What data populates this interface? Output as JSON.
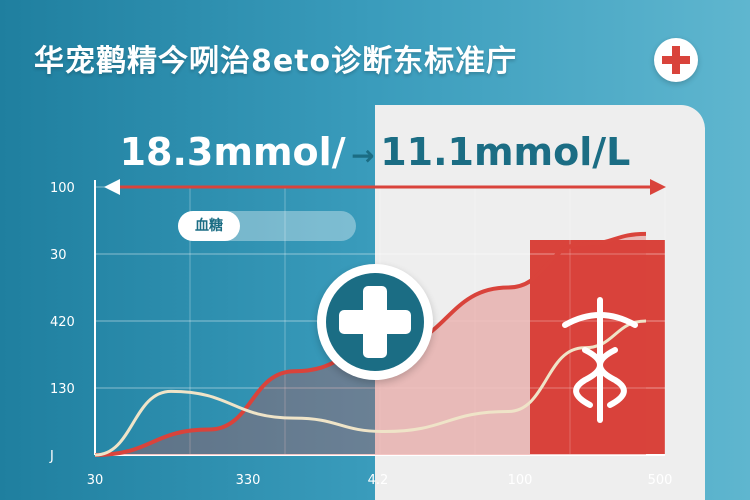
{
  "title": "华宠鹳精今咧治8eto诊断东标准庁",
  "headline": {
    "left": "18.3mmol/",
    "separator": "→",
    "right": "11.1mmol/L"
  },
  "pill_label": "血糖",
  "icons": [
    "medical-cross-icon",
    "medical-cross-badge-icon",
    "caduceus-icon"
  ],
  "colors": {
    "teal": "#1b6d84",
    "red": "#d9433b",
    "cream": "#efe4c8"
  },
  "chart_data": {
    "type": "line",
    "y_tick_labels": [
      "100",
      "30",
      "420",
      "130",
      "J"
    ],
    "x_tick_labels": [
      "30",
      "330",
      "4.2",
      "100",
      "500"
    ],
    "grid": true,
    "series": [
      {
        "color": "#d9433b",
        "points": [
          [
            0,
            0
          ],
          [
            1.2,
            0.38
          ],
          [
            2.1,
            1.25
          ],
          [
            3.05,
            1.6
          ],
          [
            4.35,
            2.5
          ],
          [
            5.15,
            3.15
          ],
          [
            5.8,
            3.3
          ]
        ]
      },
      {
        "color": "#efe4c8",
        "points": [
          [
            0,
            0
          ],
          [
            0.8,
            0.95
          ],
          [
            2.1,
            0.55
          ],
          [
            3.05,
            0.35
          ],
          [
            4.35,
            0.65
          ],
          [
            5.15,
            1.6
          ],
          [
            5.8,
            2.0
          ]
        ]
      }
    ]
  }
}
